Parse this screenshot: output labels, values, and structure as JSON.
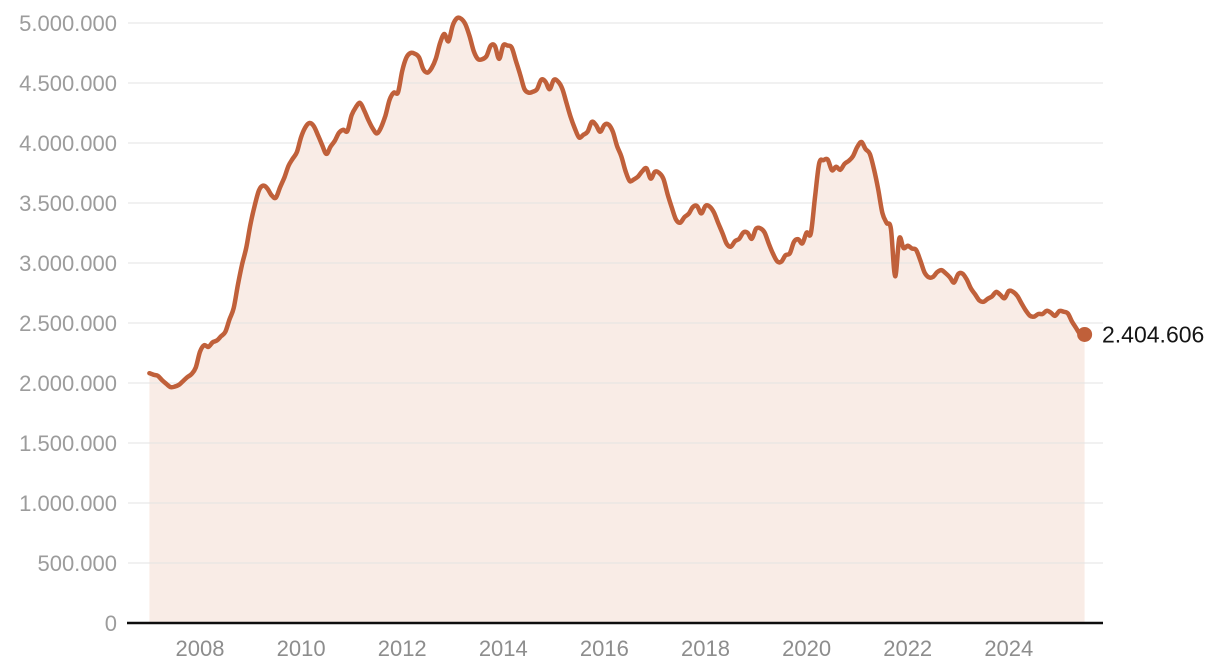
{
  "chart_data": {
    "type": "area",
    "title": "",
    "grid": "horizontal",
    "legend": "none",
    "ylim": [
      0,
      5000000
    ],
    "xlim_years": [
      2007.0,
      2025.58
    ],
    "frequency": "monthly",
    "start_year": 2007,
    "start_month": 1,
    "end_label": "2.404.606",
    "end_value": 2404606,
    "y_axis": {
      "ticks": [
        {
          "value": 5000000,
          "label": "5.000.000"
        },
        {
          "value": 4500000,
          "label": "4.500.000"
        },
        {
          "value": 4000000,
          "label": "4.000.000"
        },
        {
          "value": 3500000,
          "label": "3.500.000"
        },
        {
          "value": 3000000,
          "label": "3.000.000"
        },
        {
          "value": 2500000,
          "label": "2.500.000"
        },
        {
          "value": 2000000,
          "label": "2.000.000"
        },
        {
          "value": 1500000,
          "label": "1.500.000"
        },
        {
          "value": 1000000,
          "label": "1.000.000"
        },
        {
          "value": 500000,
          "label": "500.000"
        },
        {
          "value": 0,
          "label": "0"
        }
      ]
    },
    "x_axis": {
      "ticks": [
        {
          "value": 2008,
          "label": "2008"
        },
        {
          "value": 2010,
          "label": "2010"
        },
        {
          "value": 2012,
          "label": "2012"
        },
        {
          "value": 2014,
          "label": "2014"
        },
        {
          "value": 2016,
          "label": "2016"
        },
        {
          "value": 2018,
          "label": "2018"
        },
        {
          "value": 2020,
          "label": "2020"
        },
        {
          "value": 2022,
          "label": "2022"
        },
        {
          "value": 2024,
          "label": "2024"
        }
      ]
    },
    "series": [
      {
        "name": "main-series",
        "values": [
          2082000,
          2068000,
          2059000,
          2023000,
          1993000,
          1966000,
          1970000,
          1985000,
          2017000,
          2049000,
          2075000,
          2130000,
          2261000,
          2315000,
          2301000,
          2339000,
          2354000,
          2390000,
          2426000,
          2530000,
          2625000,
          2818000,
          2989000,
          3129000,
          3328000,
          3482000,
          3606000,
          3645000,
          3620000,
          3564000,
          3544000,
          3629000,
          3710000,
          3809000,
          3869000,
          3924000,
          4049000,
          4130000,
          4167000,
          4142000,
          4066000,
          3982000,
          3909000,
          3970000,
          4018000,
          4085000,
          4110000,
          4100000,
          4231000,
          4299000,
          4334000,
          4269000,
          4189000,
          4122000,
          4080000,
          4131000,
          4227000,
          4360000,
          4420000,
          4422000,
          4600000,
          4712000,
          4750000,
          4744000,
          4714000,
          4615000,
          4587000,
          4626000,
          4705000,
          4834000,
          4908000,
          4848000,
          4981000,
          5040000,
          5035000,
          4989000,
          4890000,
          4764000,
          4699000,
          4698000,
          4724000,
          4811000,
          4809000,
          4701000,
          4814000,
          4812000,
          4795000,
          4684000,
          4572000,
          4450000,
          4420000,
          4427000,
          4448000,
          4527000,
          4512000,
          4448000,
          4526000,
          4512000,
          4452000,
          4333000,
          4215000,
          4120000,
          4046000,
          4068000,
          4094000,
          4176000,
          4149000,
          4094000,
          4151000,
          4153000,
          4095000,
          3976000,
          3891000,
          3767000,
          3683000,
          3697000,
          3721000,
          3765000,
          3789000,
          3703000,
          3761000,
          3751000,
          3702000,
          3573000,
          3462000,
          3362000,
          3336000,
          3382000,
          3410000,
          3467000,
          3474000,
          3413000,
          3476000,
          3470000,
          3422000,
          3335000,
          3252000,
          3162000,
          3136000,
          3182000,
          3202000,
          3255000,
          3252000,
          3202000,
          3285000,
          3289000,
          3255000,
          3163000,
          3079000,
          3015000,
          3011000,
          3065000,
          3080000,
          3177000,
          3198000,
          3163000,
          3253000,
          3246000,
          3548000,
          3831000,
          3857000,
          3862000,
          3773000,
          3802000,
          3777000,
          3826000,
          3851000,
          3889000,
          3964000,
          4008000,
          3949000,
          3910000,
          3781000,
          3614000,
          3416000,
          3334000,
          3286000,
          2890000,
          3205000,
          3125000,
          3143000,
          3121000,
          3109000,
          3022000,
          2922000,
          2881000,
          2884000,
          2924000,
          2941000,
          2915000,
          2881000,
          2837000,
          2908000,
          2912000,
          2863000,
          2788000,
          2739000,
          2688000,
          2677000,
          2702000,
          2722000,
          2759000,
          2734000,
          2707000,
          2767000,
          2760000,
          2727000,
          2666000,
          2607000,
          2561000,
          2553000,
          2575000,
          2575000,
          2602000,
          2586000,
          2560000,
          2599000,
          2594000,
          2580000,
          2512000,
          2457000,
          2406000,
          2404606
        ]
      }
    ],
    "colors": {
      "line": "#c0603a",
      "fill": "#f9ece6",
      "grid": "#e3e3e3",
      "axis": "#0d0d0d",
      "y_tick_label": "#9c9c9c",
      "x_tick_label": "#8d8d8d",
      "end_label": "#151515",
      "background": "#ffffff"
    }
  }
}
